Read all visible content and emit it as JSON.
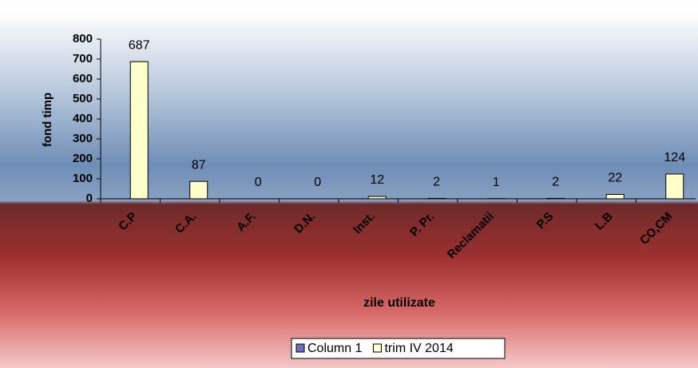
{
  "chart_data": {
    "type": "bar",
    "x_label": "zile utilizate",
    "y_label": "fond timp",
    "categories": [
      "C.P",
      "C.A.",
      "A.F.",
      "D.N.",
      "Inst.",
      "P. Pr.",
      "Reclamatii",
      "P.S",
      "L.B",
      "CO,CM"
    ],
    "series": [
      {
        "name": "Column 1",
        "color": "#6b6bc8",
        "values": [
          null,
          null,
          null,
          null,
          null,
          null,
          null,
          null,
          null,
          null
        ]
      },
      {
        "name": "trim IV 2014",
        "color": "#ffffcc",
        "values": [
          687,
          87,
          0,
          0,
          12,
          2,
          1,
          2,
          22,
          124
        ]
      }
    ],
    "ylim": [
      0,
      800
    ],
    "yticks": [
      0,
      100,
      200,
      300,
      400,
      500,
      600,
      700,
      800
    ],
    "legend": "bottom"
  }
}
